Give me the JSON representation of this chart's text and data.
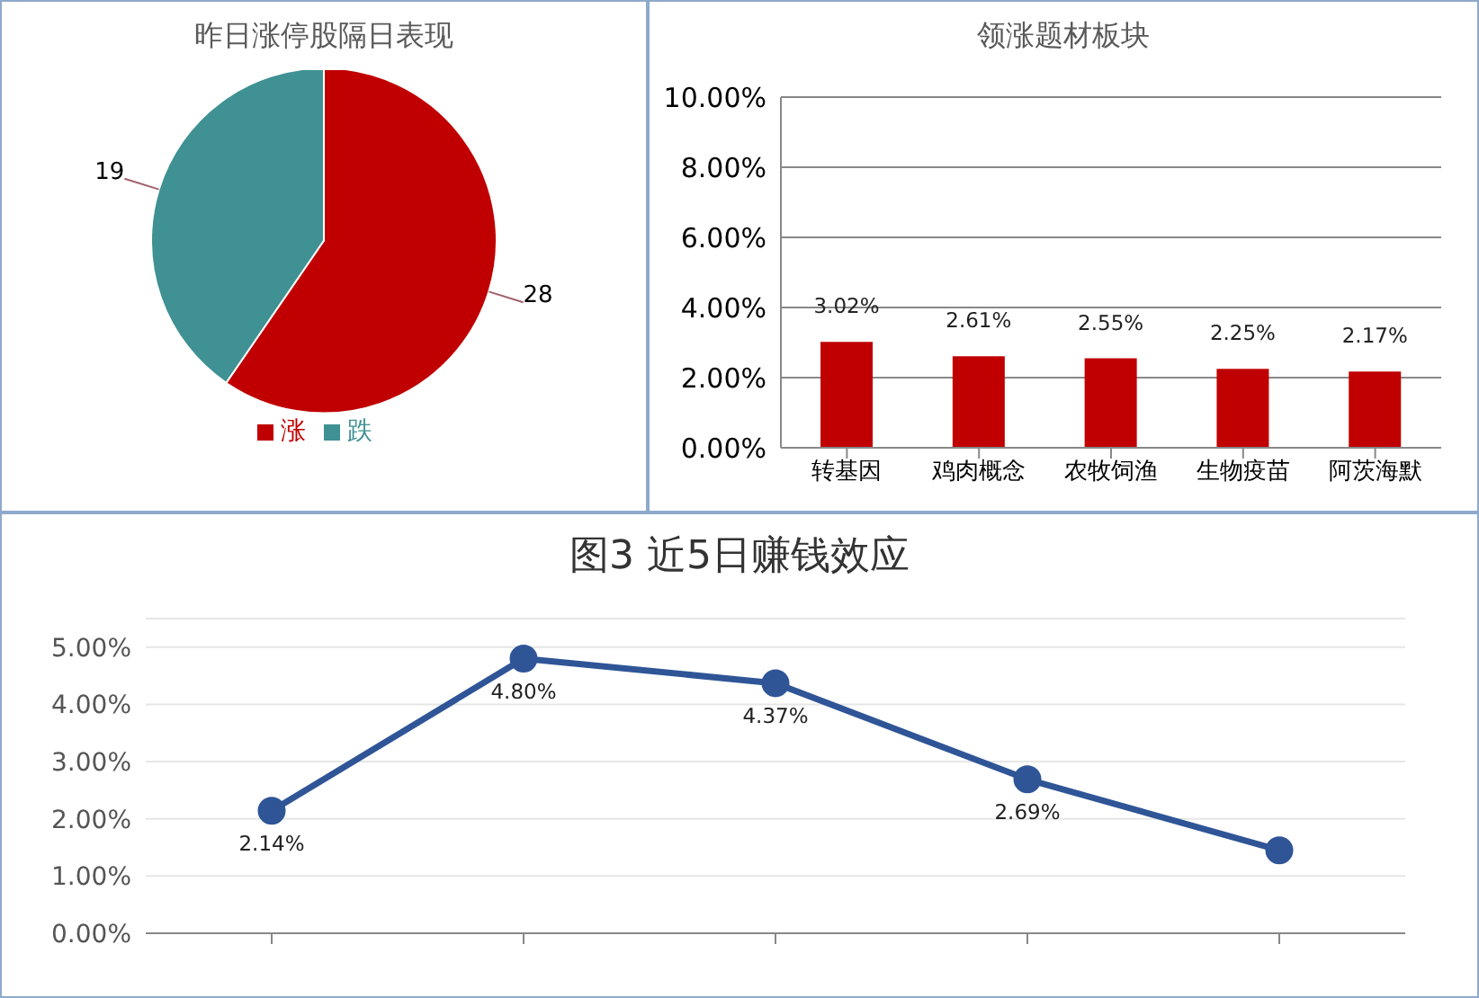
{
  "chart_data": [
    {
      "type": "pie",
      "title": "昨日涨停股隔日表现",
      "categories": [
        "涨",
        "跌"
      ],
      "values": [
        28,
        19
      ],
      "colors": [
        "#c00000",
        "#3f9193"
      ],
      "data_labels": true,
      "legend": "bottom"
    },
    {
      "type": "bar",
      "title": "领涨题材板块",
      "categories": [
        "转基因",
        "鸡肉概念",
        "农牧饲渔",
        "生物疫苗",
        "阿茨海默"
      ],
      "values": [
        3.02,
        2.61,
        2.55,
        2.25,
        2.17
      ],
      "value_labels": [
        "3.02%",
        "2.61%",
        "2.55%",
        "2.25%",
        "2.17%"
      ],
      "color": "#c00000",
      "ylim": [
        0,
        10
      ],
      "yticks": [
        {
          "value": 0,
          "label": "0.00%"
        },
        {
          "value": 2,
          "label": "2.00%"
        },
        {
          "value": 4,
          "label": "4.00%"
        },
        {
          "value": 6,
          "label": "6.00%"
        },
        {
          "value": 8,
          "label": "8.00%"
        },
        {
          "value": 10,
          "label": "10.00%"
        }
      ],
      "grid": "y"
    },
    {
      "type": "line",
      "title": "图3 近5日赚钱效应",
      "categories": [
        null,
        null,
        null,
        null,
        null
      ],
      "values": [
        2.14,
        4.8,
        4.37,
        2.69,
        1.45
      ],
      "value_labels": [
        "2.14%",
        "4.80%",
        "4.37%",
        "2.69%",
        null
      ],
      "color": "#2f5597",
      "marker": "circle",
      "ylim": [
        0,
        5.5
      ],
      "yticks": [
        {
          "value": 0,
          "label": "0.00%"
        },
        {
          "value": 1,
          "label": "1.00%"
        },
        {
          "value": 2,
          "label": "2.00%"
        },
        {
          "value": 3,
          "label": "3.00%"
        },
        {
          "value": 4,
          "label": "4.00%"
        },
        {
          "value": 5,
          "label": "5.00%"
        }
      ],
      "grid": "y"
    }
  ]
}
